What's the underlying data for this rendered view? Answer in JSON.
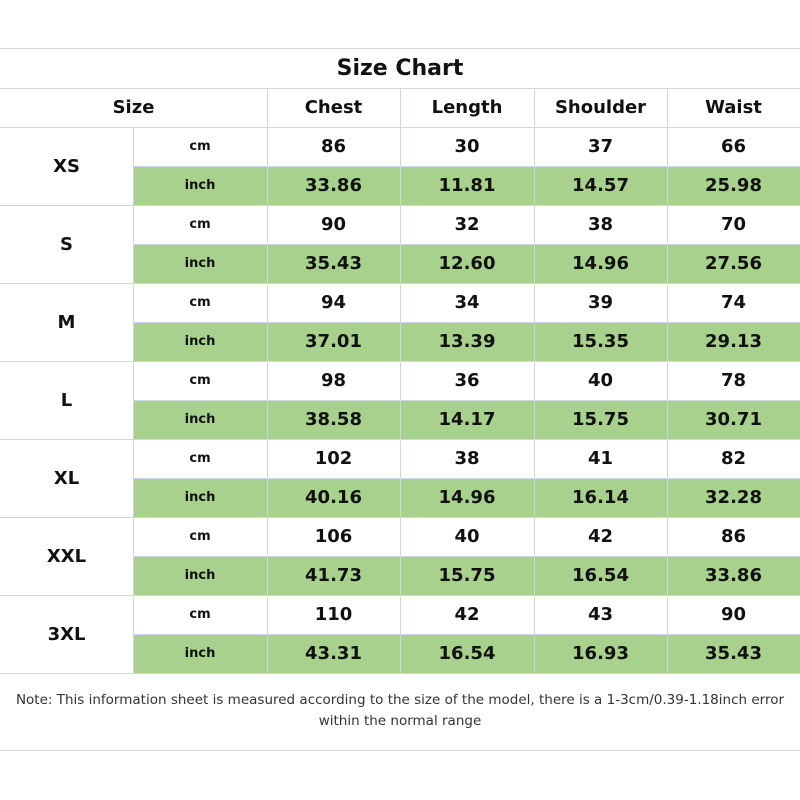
{
  "table": {
    "title": "Size Chart",
    "headers": [
      "Size",
      "Chest",
      "Length",
      "Shoulder",
      "Waist"
    ],
    "rows": [
      {
        "size": "XS",
        "cm": {
          "unit": "cm",
          "values": [
            "86",
            "30",
            "37",
            "66"
          ]
        },
        "inch": {
          "unit": "inch",
          "values": [
            "33.86",
            "11.81",
            "14.57",
            "25.98"
          ]
        }
      },
      {
        "size": "S",
        "cm": {
          "unit": "cm",
          "values": [
            "90",
            "32",
            "38",
            "70"
          ]
        },
        "inch": {
          "unit": "inch",
          "values": [
            "35.43",
            "12.60",
            "14.96",
            "27.56"
          ]
        }
      },
      {
        "size": "M",
        "cm": {
          "unit": "cm",
          "values": [
            "94",
            "34",
            "39",
            "74"
          ]
        },
        "inch": {
          "unit": "inch",
          "values": [
            "37.01",
            "13.39",
            "15.35",
            "29.13"
          ]
        }
      },
      {
        "size": "L",
        "cm": {
          "unit": "cm",
          "values": [
            "98",
            "36",
            "40",
            "78"
          ]
        },
        "inch": {
          "unit": "inch",
          "values": [
            "38.58",
            "14.17",
            "15.75",
            "30.71"
          ]
        }
      },
      {
        "size": "XL",
        "cm": {
          "unit": "cm",
          "values": [
            "102",
            "38",
            "41",
            "82"
          ]
        },
        "inch": {
          "unit": "inch",
          "values": [
            "40.16",
            "14.96",
            "16.14",
            "32.28"
          ]
        }
      },
      {
        "size": "XXL",
        "cm": {
          "unit": "cm",
          "values": [
            "106",
            "40",
            "42",
            "86"
          ]
        },
        "inch": {
          "unit": "inch",
          "values": [
            "41.73",
            "15.75",
            "16.54",
            "33.86"
          ]
        }
      },
      {
        "size": "3XL",
        "cm": {
          "unit": "cm",
          "values": [
            "110",
            "42",
            "43",
            "90"
          ]
        },
        "inch": {
          "unit": "inch",
          "values": [
            "43.31",
            "16.54",
            "16.93",
            "35.43"
          ]
        }
      }
    ]
  },
  "note": "Note: This information sheet is measured according to the size of the model, there is a 1-3cm/0.39-1.18inch error within the normal range"
}
